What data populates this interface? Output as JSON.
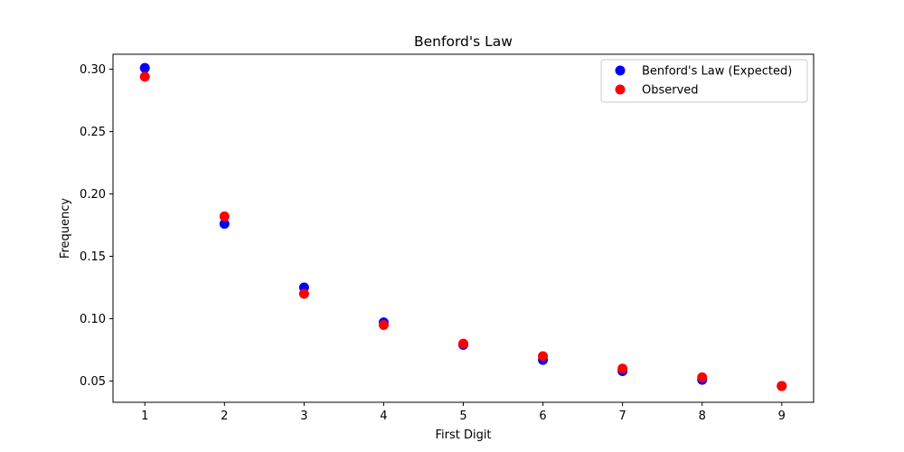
{
  "chart_data": {
    "type": "scatter",
    "title": "Benford's Law",
    "xlabel": "First Digit",
    "ylabel": "Frequency",
    "x": [
      1,
      2,
      3,
      4,
      5,
      6,
      7,
      8,
      9
    ],
    "xlim": [
      0.6,
      9.4
    ],
    "ylim": [
      0.033,
      0.312
    ],
    "xticks": [
      "1",
      "2",
      "3",
      "4",
      "5",
      "6",
      "7",
      "8",
      "9"
    ],
    "yticks": [
      "0.05",
      "0.10",
      "0.15",
      "0.20",
      "0.25",
      "0.30"
    ],
    "grid": false,
    "legend_position": "top-right",
    "series": [
      {
        "name": "Benford's Law (Expected)",
        "color": "#0000ff",
        "values": [
          0.301,
          0.176,
          0.125,
          0.097,
          0.079,
          0.067,
          0.058,
          0.051,
          0.046
        ]
      },
      {
        "name": "Observed",
        "color": "#ff0000",
        "values": [
          0.294,
          0.182,
          0.12,
          0.095,
          0.08,
          0.07,
          0.06,
          0.053,
          0.046
        ]
      }
    ]
  }
}
